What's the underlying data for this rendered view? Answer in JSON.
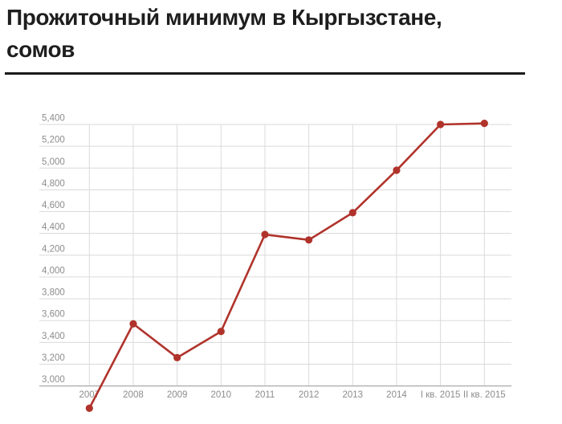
{
  "header": {
    "title_lines": [
      "Прожиточный минимум в Кыргызстане,",
      "сомов"
    ]
  },
  "chart_data": {
    "type": "line",
    "title": "Прожиточный минимум в Кыргызстане, сомов",
    "ylabel": "сомов",
    "xlabel": "",
    "categories": [
      "2007",
      "2008",
      "2009",
      "2010",
      "2011",
      "2012",
      "2013",
      "2014",
      "I кв. 2015",
      "II кв. 2015"
    ],
    "values": [
      2795,
      3570,
      3260,
      3500,
      4390,
      4340,
      4590,
      4980,
      5400,
      5410
    ],
    "y_ticks": {
      "values": [
        3000,
        3200,
        3400,
        3600,
        3800,
        4000,
        4200,
        4400,
        4600,
        4800,
        5000,
        5200,
        5400
      ],
      "labels": [
        "3,000",
        "3,200",
        "3,400",
        "3,600",
        "3,800",
        "4,000",
        "4,200",
        "4,400",
        "4,600",
        "4,800",
        "5,000",
        "5,200",
        "5,400"
      ]
    },
    "ylim": [
      3000,
      5400
    ],
    "grid": true,
    "legend": "none",
    "colors": {
      "line": "#b0332b",
      "point": "#b0332b",
      "grid": "#dadada",
      "axis": "#a9a9a9",
      "tick_text": "#8c8c8c",
      "title": "#1e1e1e",
      "rule": "#1a1a1a"
    }
  }
}
